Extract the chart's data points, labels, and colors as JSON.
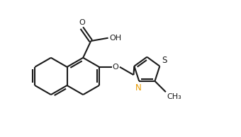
{
  "bg_color": "#ffffff",
  "line_color": "#1a1a1a",
  "N_color": "#e69900",
  "line_width": 1.5,
  "figsize": [
    3.4,
    1.94
  ],
  "dpi": 100,
  "xlim": [
    0,
    8.5
  ],
  "ylim": [
    0.2,
    5.5
  ]
}
